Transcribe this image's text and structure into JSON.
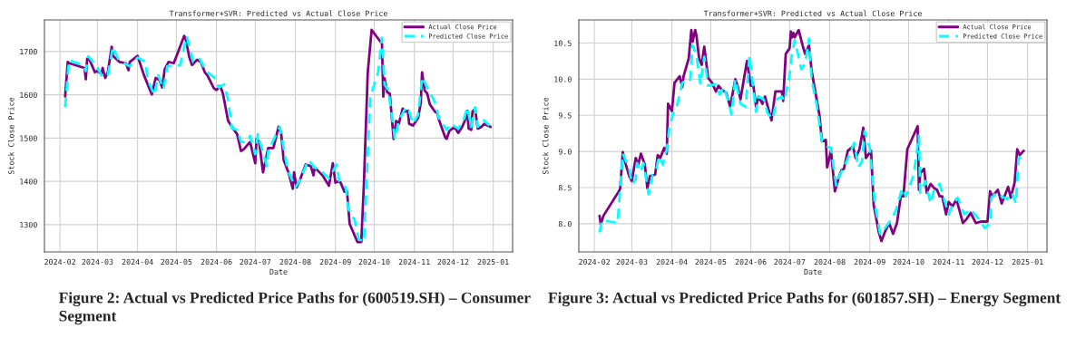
{
  "chart_data": [
    {
      "type": "line",
      "title": "Transformer+SVR: Predicted vs Actual Close Price",
      "xlabel": "Date",
      "ylabel": "Stock Close Price",
      "xlim": [
        "2024-01-20",
        "2025-01-16"
      ],
      "ylim": [
        1237,
        1773
      ],
      "xticks": [
        {
          "value": "2024-02-01",
          "label": "2024-02"
        },
        {
          "value": "2024-03-01",
          "label": "2024-03"
        },
        {
          "value": "2024-04-01",
          "label": "2024-04"
        },
        {
          "value": "2024-05-01",
          "label": "2024-05"
        },
        {
          "value": "2024-06-01",
          "label": "2024-06"
        },
        {
          "value": "2024-07-01",
          "label": "2024-07"
        },
        {
          "value": "2024-08-01",
          "label": "2024-08"
        },
        {
          "value": "2024-09-01",
          "label": "2024-09"
        },
        {
          "value": "2024-10-01",
          "label": "2024-10"
        },
        {
          "value": "2024-11-01",
          "label": "2024-11"
        },
        {
          "value": "2024-12-01",
          "label": "2024-12"
        },
        {
          "value": "2025-01-01",
          "label": "2025-01"
        }
      ],
      "yticks": [
        1300,
        1400,
        1500,
        1600,
        1700
      ],
      "grid": true,
      "legend": "top right",
      "series": [
        {
          "name": "Actual Close Price",
          "color": "#800080",
          "line_style": "solid",
          "x": [
            "2024-02-05",
            "2024-02-07",
            "2024-02-08",
            "2024-02-20",
            "2024-02-21",
            "2024-02-22",
            "2024-02-23",
            "2024-02-28",
            "2024-03-01",
            "2024-03-04",
            "2024-03-05",
            "2024-03-07",
            "2024-03-09",
            "2024-03-12",
            "2024-03-13",
            "2024-03-18",
            "2024-03-23",
            "2024-03-25",
            "2024-03-26",
            "2024-04-01",
            "2024-04-06",
            "2024-04-12",
            "2024-04-15",
            "2024-04-18",
            "2024-04-20",
            "2024-04-22",
            "2024-04-25",
            "2024-04-29",
            "2024-05-07",
            "2024-05-08",
            "2024-05-11",
            "2024-05-13",
            "2024-05-17",
            "2024-05-20",
            "2024-05-23",
            "2024-05-25",
            "2024-05-30",
            "2024-06-01",
            "2024-06-04",
            "2024-06-06",
            "2024-06-10",
            "2024-06-13",
            "2024-06-17",
            "2024-06-20",
            "2024-06-22",
            "2024-06-27",
            "2024-07-01",
            "2024-07-02",
            "2024-07-04",
            "2024-07-07",
            "2024-07-11",
            "2024-07-12",
            "2024-07-15",
            "2024-07-17",
            "2024-07-19",
            "2024-07-21",
            "2024-07-23",
            "2024-07-27",
            "2024-07-30",
            "2024-07-31",
            "2024-08-02",
            "2024-08-05",
            "2024-08-09",
            "2024-08-13",
            "2024-08-15",
            "2024-08-16",
            "2024-08-22",
            "2024-08-27",
            "2024-08-30",
            "2024-09-01",
            "2024-09-03",
            "2024-09-05",
            "2024-09-08",
            "2024-09-10",
            "2024-09-12",
            "2024-09-18",
            "2024-09-21",
            "2024-09-23",
            "2024-09-26",
            "2024-09-29",
            "2024-10-07",
            "2024-10-08",
            "2024-10-09",
            "2024-10-11",
            "2024-10-13",
            "2024-10-16",
            "2024-10-18",
            "2024-10-20",
            "2024-10-23",
            "2024-10-25",
            "2024-10-27",
            "2024-10-28",
            "2024-10-31",
            "2024-11-04",
            "2024-11-06",
            "2024-11-07",
            "2024-11-09",
            "2024-11-11",
            "2024-11-13",
            "2024-11-17",
            "2024-11-19",
            "2024-11-20",
            "2024-11-22",
            "2024-11-25",
            "2024-11-26",
            "2024-11-28",
            "2024-12-02",
            "2024-12-05",
            "2024-12-08",
            "2024-12-11",
            "2024-12-12",
            "2024-12-13",
            "2024-12-15",
            "2024-12-16",
            "2024-12-18",
            "2024-12-20",
            "2024-12-23",
            "2024-12-25",
            "2024-12-30"
          ],
          "values": [
            1596,
            1676,
            1673,
            1662,
            1636,
            1683,
            1687,
            1652,
            1655,
            1648,
            1662,
            1639,
            1652,
            1711,
            1690,
            1676,
            1673,
            1657,
            1676,
            1690,
            1645,
            1601,
            1639,
            1634,
            1617,
            1659,
            1676,
            1673,
            1736,
            1732,
            1687,
            1669,
            1681,
            1676,
            1652,
            1645,
            1615,
            1611,
            1620,
            1603,
            1540,
            1526,
            1509,
            1470,
            1474,
            1491,
            1442,
            1498,
            1491,
            1421,
            1477,
            1477,
            1477,
            1501,
            1526,
            1512,
            1449,
            1418,
            1383,
            1421,
            1386,
            1407,
            1439,
            1435,
            1414,
            1432,
            1414,
            1390,
            1442,
            1397,
            1400,
            1397,
            1376,
            1376,
            1302,
            1260,
            1260,
            1393,
            1652,
            1750,
            1718,
            1596,
            1638,
            1606,
            1603,
            1498,
            1540,
            1533,
            1568,
            1561,
            1563,
            1533,
            1529,
            1547,
            1582,
            1652,
            1610,
            1603,
            1578,
            1561,
            1557,
            1543,
            1526,
            1501,
            1498,
            1516,
            1526,
            1512,
            1526,
            1547,
            1563,
            1522,
            1519,
            1561,
            1568,
            1522,
            1526,
            1533,
            1526
          ]
        },
        {
          "name": "Predicted Close Price",
          "color": "#00ffff",
          "line_style": "dashed",
          "x": [
            "2024-02-05",
            "2024-02-08",
            "2024-02-19",
            "2024-02-21",
            "2024-02-23",
            "2024-03-01",
            "2024-03-05",
            "2024-03-09",
            "2024-03-13",
            "2024-03-17",
            "2024-03-24",
            "2024-03-26",
            "2024-04-01",
            "2024-04-07",
            "2024-04-09",
            "2024-04-14",
            "2024-04-17",
            "2024-04-21",
            "2024-04-24",
            "2024-05-04",
            "2024-05-09",
            "2024-05-14",
            "2024-05-19",
            "2024-05-24",
            "2024-05-30",
            "2024-06-03",
            "2024-06-07",
            "2024-06-10",
            "2024-06-13",
            "2024-06-17",
            "2024-06-20",
            "2024-06-25",
            "2024-06-27",
            "2024-07-01",
            "2024-07-03",
            "2024-07-10",
            "2024-07-11",
            "2024-07-20",
            "2024-07-26",
            "2024-08-01",
            "2024-08-04",
            "2024-08-11",
            "2024-08-16",
            "2024-08-22",
            "2024-08-27",
            "2024-09-02",
            "2024-09-04",
            "2024-09-09",
            "2024-09-11",
            "2024-09-16",
            "2024-09-19",
            "2024-09-23",
            "2024-09-28",
            "2024-10-04",
            "2024-10-07",
            "2024-10-09",
            "2024-10-12",
            "2024-10-17",
            "2024-10-20",
            "2024-10-25",
            "2024-10-27",
            "2024-10-31",
            "2024-11-04",
            "2024-11-07",
            "2024-11-11",
            "2024-11-17",
            "2024-11-20",
            "2024-11-26",
            "2024-11-29",
            "2024-12-05",
            "2024-12-09",
            "2024-12-12",
            "2024-12-15",
            "2024-12-18",
            "2024-12-20",
            "2024-12-24",
            "2024-12-29"
          ],
          "values": [
            1571,
            1680,
            1669,
            1655,
            1689,
            1662,
            1641,
            1645,
            1711,
            1683,
            1669,
            1666,
            1686,
            1676,
            1634,
            1599,
            1645,
            1613,
            1666,
            1669,
            1736,
            1676,
            1683,
            1655,
            1641,
            1617,
            1624,
            1589,
            1523,
            1519,
            1491,
            1491,
            1505,
            1463,
            1509,
            1435,
            1470,
            1526,
            1428,
            1386,
            1400,
            1449,
            1432,
            1421,
            1407,
            1439,
            1400,
            1386,
            1337,
            1309,
            1267,
            1260,
            1596,
            1652,
            1732,
            1624,
            1610,
            1498,
            1540,
            1568,
            1571,
            1533,
            1554,
            1641,
            1617,
            1582,
            1547,
            1519,
            1533,
            1522,
            1540,
            1571,
            1526,
            1571,
            1526,
            1543,
            1529
          ]
        }
      ],
      "annotations": [
        "Figure 2: Actual vs Predicted Price Paths for (600519.SH) – Consumer Segment"
      ]
    },
    {
      "type": "line",
      "title": "Transformer+SVR: Predicted vs Actual Close Price",
      "xlabel": "Date",
      "ylabel": "Stock Close Price",
      "xlim": [
        "2024-01-20",
        "2025-01-16"
      ],
      "ylim": [
        7.61,
        10.82
      ],
      "xticks": [
        {
          "value": "2024-02-01",
          "label": "2024-02"
        },
        {
          "value": "2024-03-01",
          "label": "2024-03"
        },
        {
          "value": "2024-04-01",
          "label": "2024-04"
        },
        {
          "value": "2024-05-01",
          "label": "2024-05"
        },
        {
          "value": "2024-06-01",
          "label": "2024-06"
        },
        {
          "value": "2024-07-01",
          "label": "2024-07"
        },
        {
          "value": "2024-08-01",
          "label": "2024-08"
        },
        {
          "value": "2024-09-01",
          "label": "2024-09"
        },
        {
          "value": "2024-10-01",
          "label": "2024-10"
        },
        {
          "value": "2024-11-01",
          "label": "2024-11"
        },
        {
          "value": "2024-12-01",
          "label": "2024-12"
        },
        {
          "value": "2025-01-01",
          "label": "2025-01"
        }
      ],
      "yticks": [
        {
          "value": 8,
          "label": "8.0"
        },
        8.5,
        {
          "value": 9,
          "label": "9.0"
        },
        9.5,
        {
          "value": 10,
          "label": "10.0"
        },
        10.5
      ],
      "grid": true,
      "legend": "top right",
      "series": [
        {
          "name": "Actual Close Price",
          "color": "#800080",
          "line_style": "solid",
          "x": [
            "2024-02-05",
            "2024-02-06",
            "2024-02-08",
            "2024-02-20",
            "2024-02-21",
            "2024-02-23",
            "2024-02-25",
            "2024-02-28",
            "2024-03-01",
            "2024-03-04",
            "2024-03-06",
            "2024-03-08",
            "2024-03-11",
            "2024-03-13",
            "2024-03-15",
            "2024-03-19",
            "2024-03-21",
            "2024-03-23",
            "2024-03-26",
            "2024-03-28",
            "2024-03-29",
            "2024-04-01",
            "2024-04-03",
            "2024-04-07",
            "2024-04-09",
            "2024-04-10",
            "2024-04-14",
            "2024-04-16",
            "2024-04-17",
            "2024-04-19",
            "2024-04-20",
            "2024-04-22",
            "2024-04-24",
            "2024-04-26",
            "2024-04-29",
            "2024-05-02",
            "2024-05-05",
            "2024-05-07",
            "2024-05-10",
            "2024-05-13",
            "2024-05-16",
            "2024-05-20",
            "2024-05-22",
            "2024-05-24",
            "2024-05-29",
            "2024-06-01",
            "2024-06-03",
            "2024-06-05",
            "2024-06-07",
            "2024-06-10",
            "2024-06-12",
            "2024-06-17",
            "2024-06-20",
            "2024-06-25",
            "2024-06-26",
            "2024-06-28",
            "2024-07-01",
            "2024-07-02",
            "2024-07-03",
            "2024-07-04",
            "2024-07-05",
            "2024-07-08",
            "2024-07-11",
            "2024-07-13",
            "2024-07-16",
            "2024-07-18",
            "2024-07-21",
            "2024-07-24",
            "2024-07-26",
            "2024-07-29",
            "2024-07-30",
            "2024-08-02",
            "2024-08-05",
            "2024-08-08",
            "2024-08-10",
            "2024-08-12",
            "2024-08-15",
            "2024-08-19",
            "2024-08-21",
            "2024-08-24",
            "2024-08-27",
            "2024-08-29",
            "2024-09-02",
            "2024-09-04",
            "2024-09-08",
            "2024-09-10",
            "2024-09-13",
            "2024-09-16",
            "2024-09-19",
            "2024-09-22",
            "2024-09-25",
            "2024-09-27",
            "2024-09-30",
            "2024-10-08",
            "2024-10-09",
            "2024-10-10",
            "2024-10-13",
            "2024-10-15",
            "2024-10-18",
            "2024-10-21",
            "2024-10-23",
            "2024-10-25",
            "2024-10-27",
            "2024-10-30",
            "2024-11-01",
            "2024-11-04",
            "2024-11-07",
            "2024-11-12",
            "2024-11-15",
            "2024-11-18",
            "2024-11-22",
            "2024-11-26",
            "2024-12-01",
            "2024-12-03",
            "2024-12-05",
            "2024-12-09",
            "2024-12-12",
            "2024-12-17",
            "2024-12-19",
            "2024-12-22",
            "2024-12-24",
            "2024-12-26",
            "2024-12-29"
          ],
          "values": [
            8.11,
            7.99,
            8.11,
            8.45,
            8.49,
            8.99,
            8.84,
            8.66,
            8.59,
            8.91,
            8.82,
            8.97,
            8.82,
            8.49,
            8.66,
            8.68,
            8.95,
            8.91,
            9.05,
            8.97,
            9.66,
            9.56,
            9.95,
            10.04,
            9.89,
            10.04,
            10.29,
            10.68,
            10.52,
            10.68,
            10.6,
            10.29,
            10.2,
            10.45,
            10.02,
            9.95,
            9.83,
            9.91,
            9.85,
            9.81,
            9.62,
            10.0,
            9.89,
            9.72,
            10.25,
            9.91,
            9.91,
            9.62,
            9.76,
            9.66,
            9.76,
            9.43,
            9.83,
            9.83,
            9.7,
            10.35,
            10.43,
            10.66,
            10.58,
            10.64,
            10.58,
            10.68,
            10.47,
            10.35,
            10.47,
            10.12,
            9.81,
            9.51,
            9.14,
            9.16,
            8.78,
            9.01,
            8.45,
            8.64,
            8.74,
            8.76,
            9.01,
            9.07,
            8.91,
            9.03,
            9.33,
            8.91,
            9.01,
            8.26,
            7.88,
            7.76,
            7.9,
            8.01,
            7.86,
            8.01,
            8.38,
            8.38,
            9.03,
            9.35,
            8.47,
            8.7,
            8.76,
            8.43,
            8.55,
            8.49,
            8.47,
            8.38,
            8.38,
            8.13,
            8.3,
            8.24,
            8.34,
            8.01,
            8.07,
            8.15,
            8.01,
            8.03,
            8.03,
            8.45,
            8.38,
            8.47,
            8.28,
            8.51,
            8.36,
            8.57,
            9.03,
            8.95,
            9.01
          ]
        },
        {
          "name": "Predicted Close Price",
          "color": "#00ffff",
          "line_style": "dashed",
          "x": [
            "2024-02-05",
            "2024-02-07",
            "2024-02-19",
            "2024-02-23",
            "2024-02-28",
            "2024-03-01",
            "2024-03-04",
            "2024-03-05",
            "2024-03-08",
            "2024-03-10",
            "2024-03-14",
            "2024-03-17",
            "2024-03-20",
            "2024-03-22",
            "2024-03-25",
            "2024-03-28",
            "2024-03-30",
            "2024-04-02",
            "2024-04-05",
            "2024-04-09",
            "2024-04-11",
            "2024-04-15",
            "2024-04-17",
            "2024-04-20",
            "2024-04-23",
            "2024-04-26",
            "2024-04-29",
            "2024-05-05",
            "2024-05-08",
            "2024-05-11",
            "2024-05-15",
            "2024-05-17",
            "2024-05-20",
            "2024-05-24",
            "2024-05-28",
            "2024-05-31",
            "2024-06-05",
            "2024-06-07",
            "2024-06-11",
            "2024-06-14",
            "2024-06-18",
            "2024-06-21",
            "2024-06-25",
            "2024-06-27",
            "2024-07-01",
            "2024-07-03",
            "2024-07-05",
            "2024-07-10",
            "2024-07-13",
            "2024-07-16",
            "2024-07-18",
            "2024-07-22",
            "2024-07-26",
            "2024-07-29",
            "2024-08-02",
            "2024-08-06",
            "2024-08-09",
            "2024-08-13",
            "2024-08-20",
            "2024-08-23",
            "2024-08-26",
            "2024-08-28",
            "2024-09-01",
            "2024-09-05",
            "2024-09-09",
            "2024-09-14",
            "2024-09-18",
            "2024-09-21",
            "2024-09-26",
            "2024-09-29",
            "2024-10-05",
            "2024-10-09",
            "2024-10-10",
            "2024-10-14",
            "2024-10-18",
            "2024-10-21",
            "2024-10-25",
            "2024-11-01",
            "2024-11-04",
            "2024-11-08",
            "2024-11-13",
            "2024-11-18",
            "2024-11-24",
            "2024-11-29",
            "2024-12-03",
            "2024-12-04",
            "2024-12-08",
            "2024-12-12",
            "2024-12-16",
            "2024-12-20",
            "2024-12-23",
            "2024-12-25",
            "2024-12-28"
          ],
          "values": [
            7.88,
            8.05,
            8.01,
            8.97,
            8.76,
            8.55,
            8.61,
            8.84,
            8.72,
            8.84,
            8.41,
            8.68,
            8.76,
            8.93,
            8.82,
            9.03,
            9.33,
            9.53,
            9.64,
            9.95,
            9.97,
            9.97,
            10.47,
            10.33,
            9.93,
            10.31,
            9.91,
            9.93,
            9.79,
            9.89,
            9.68,
            9.51,
            10.0,
            9.66,
            9.62,
            10.33,
            9.55,
            9.76,
            9.72,
            9.53,
            9.45,
            9.72,
            9.76,
            9.7,
            10.06,
            10.37,
            10.54,
            10.14,
            10.22,
            10.56,
            10.0,
            9.64,
            9.14,
            9.07,
            9.05,
            8.53,
            8.68,
            8.82,
            9.12,
            8.78,
            8.86,
            9.28,
            9.05,
            8.26,
            7.86,
            7.97,
            8.07,
            8.18,
            8.49,
            8.38,
            8.68,
            9.22,
            8.43,
            8.59,
            8.28,
            8.49,
            8.55,
            8.13,
            8.26,
            8.36,
            8.13,
            8.2,
            8.07,
            7.94,
            8.01,
            8.36,
            8.43,
            8.38,
            8.34,
            8.43,
            8.28,
            8.91,
            8.93
          ]
        }
      ],
      "annotations": [
        "Figure 3: Actual vs Predicted Price Paths for (601857.SH) – Energy Segment"
      ]
    }
  ]
}
